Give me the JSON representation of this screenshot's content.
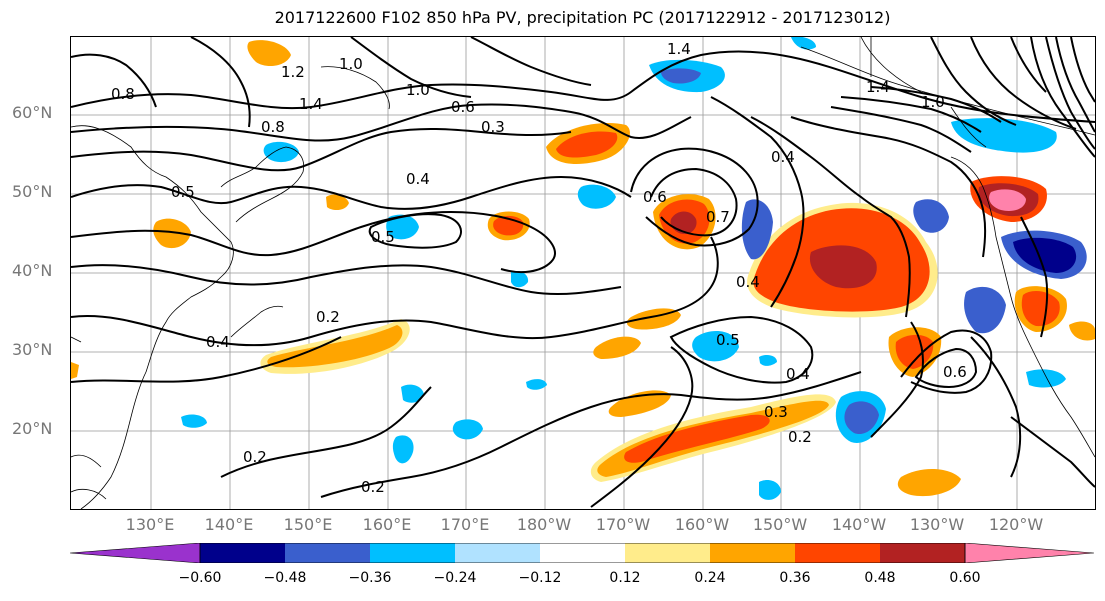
{
  "title": "2017122600 F102 850 hPa PV, precipitation PC (2017122912 - 2017123012)",
  "lat_labels": [
    "60°N",
    "50°N",
    "40°N",
    "30°N",
    "20°N"
  ],
  "lon_labels": [
    "130°E",
    "140°E",
    "150°E",
    "160°E",
    "170°E",
    "180°W",
    "170°W",
    "160°W",
    "150°W",
    "140°W",
    "130°W",
    "120°W"
  ],
  "contour_labels": [
    "1.4",
    "1.2",
    "1.0",
    "0.8",
    "1.4",
    "0.8",
    "1.0",
    "0.6",
    "0.3",
    "0.5",
    "0.4",
    "0.5",
    "0.4",
    "0.6",
    "0.7",
    "0.4",
    "0.2",
    "0.4",
    "0.5",
    "0.4",
    "0.3",
    "0.2",
    "0.2",
    "0.2",
    "0.6",
    "1.4",
    "1.0"
  ],
  "colorbar": {
    "ticks": [
      "−0.60",
      "−0.48",
      "−0.36",
      "−0.24",
      "−0.12",
      "0.12",
      "0.24",
      "0.36",
      "0.48",
      "0.60"
    ],
    "colors": [
      "#9a32cd",
      "#00008b",
      "#3a5fcd",
      "#00bfff",
      "#b0e2ff",
      "#ffffff",
      "#ffec8b",
      "#ffa500",
      "#ff4500",
      "#b22222",
      "#ff82ab"
    ]
  }
}
